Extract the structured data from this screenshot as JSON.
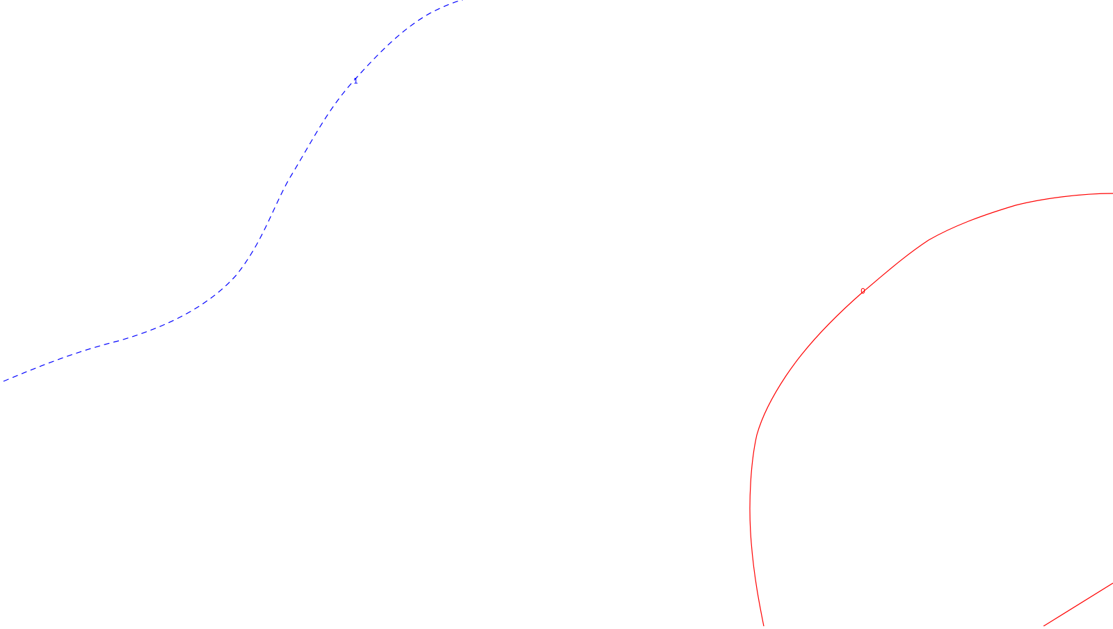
{
  "contours": [
    {
      "level_label": "1",
      "color": "#0000ff",
      "line_style": "dashed"
    },
    {
      "level_label": "0",
      "color": "#ff0000",
      "line_style": "solid"
    }
  ],
  "background_color": "#ffffff"
}
